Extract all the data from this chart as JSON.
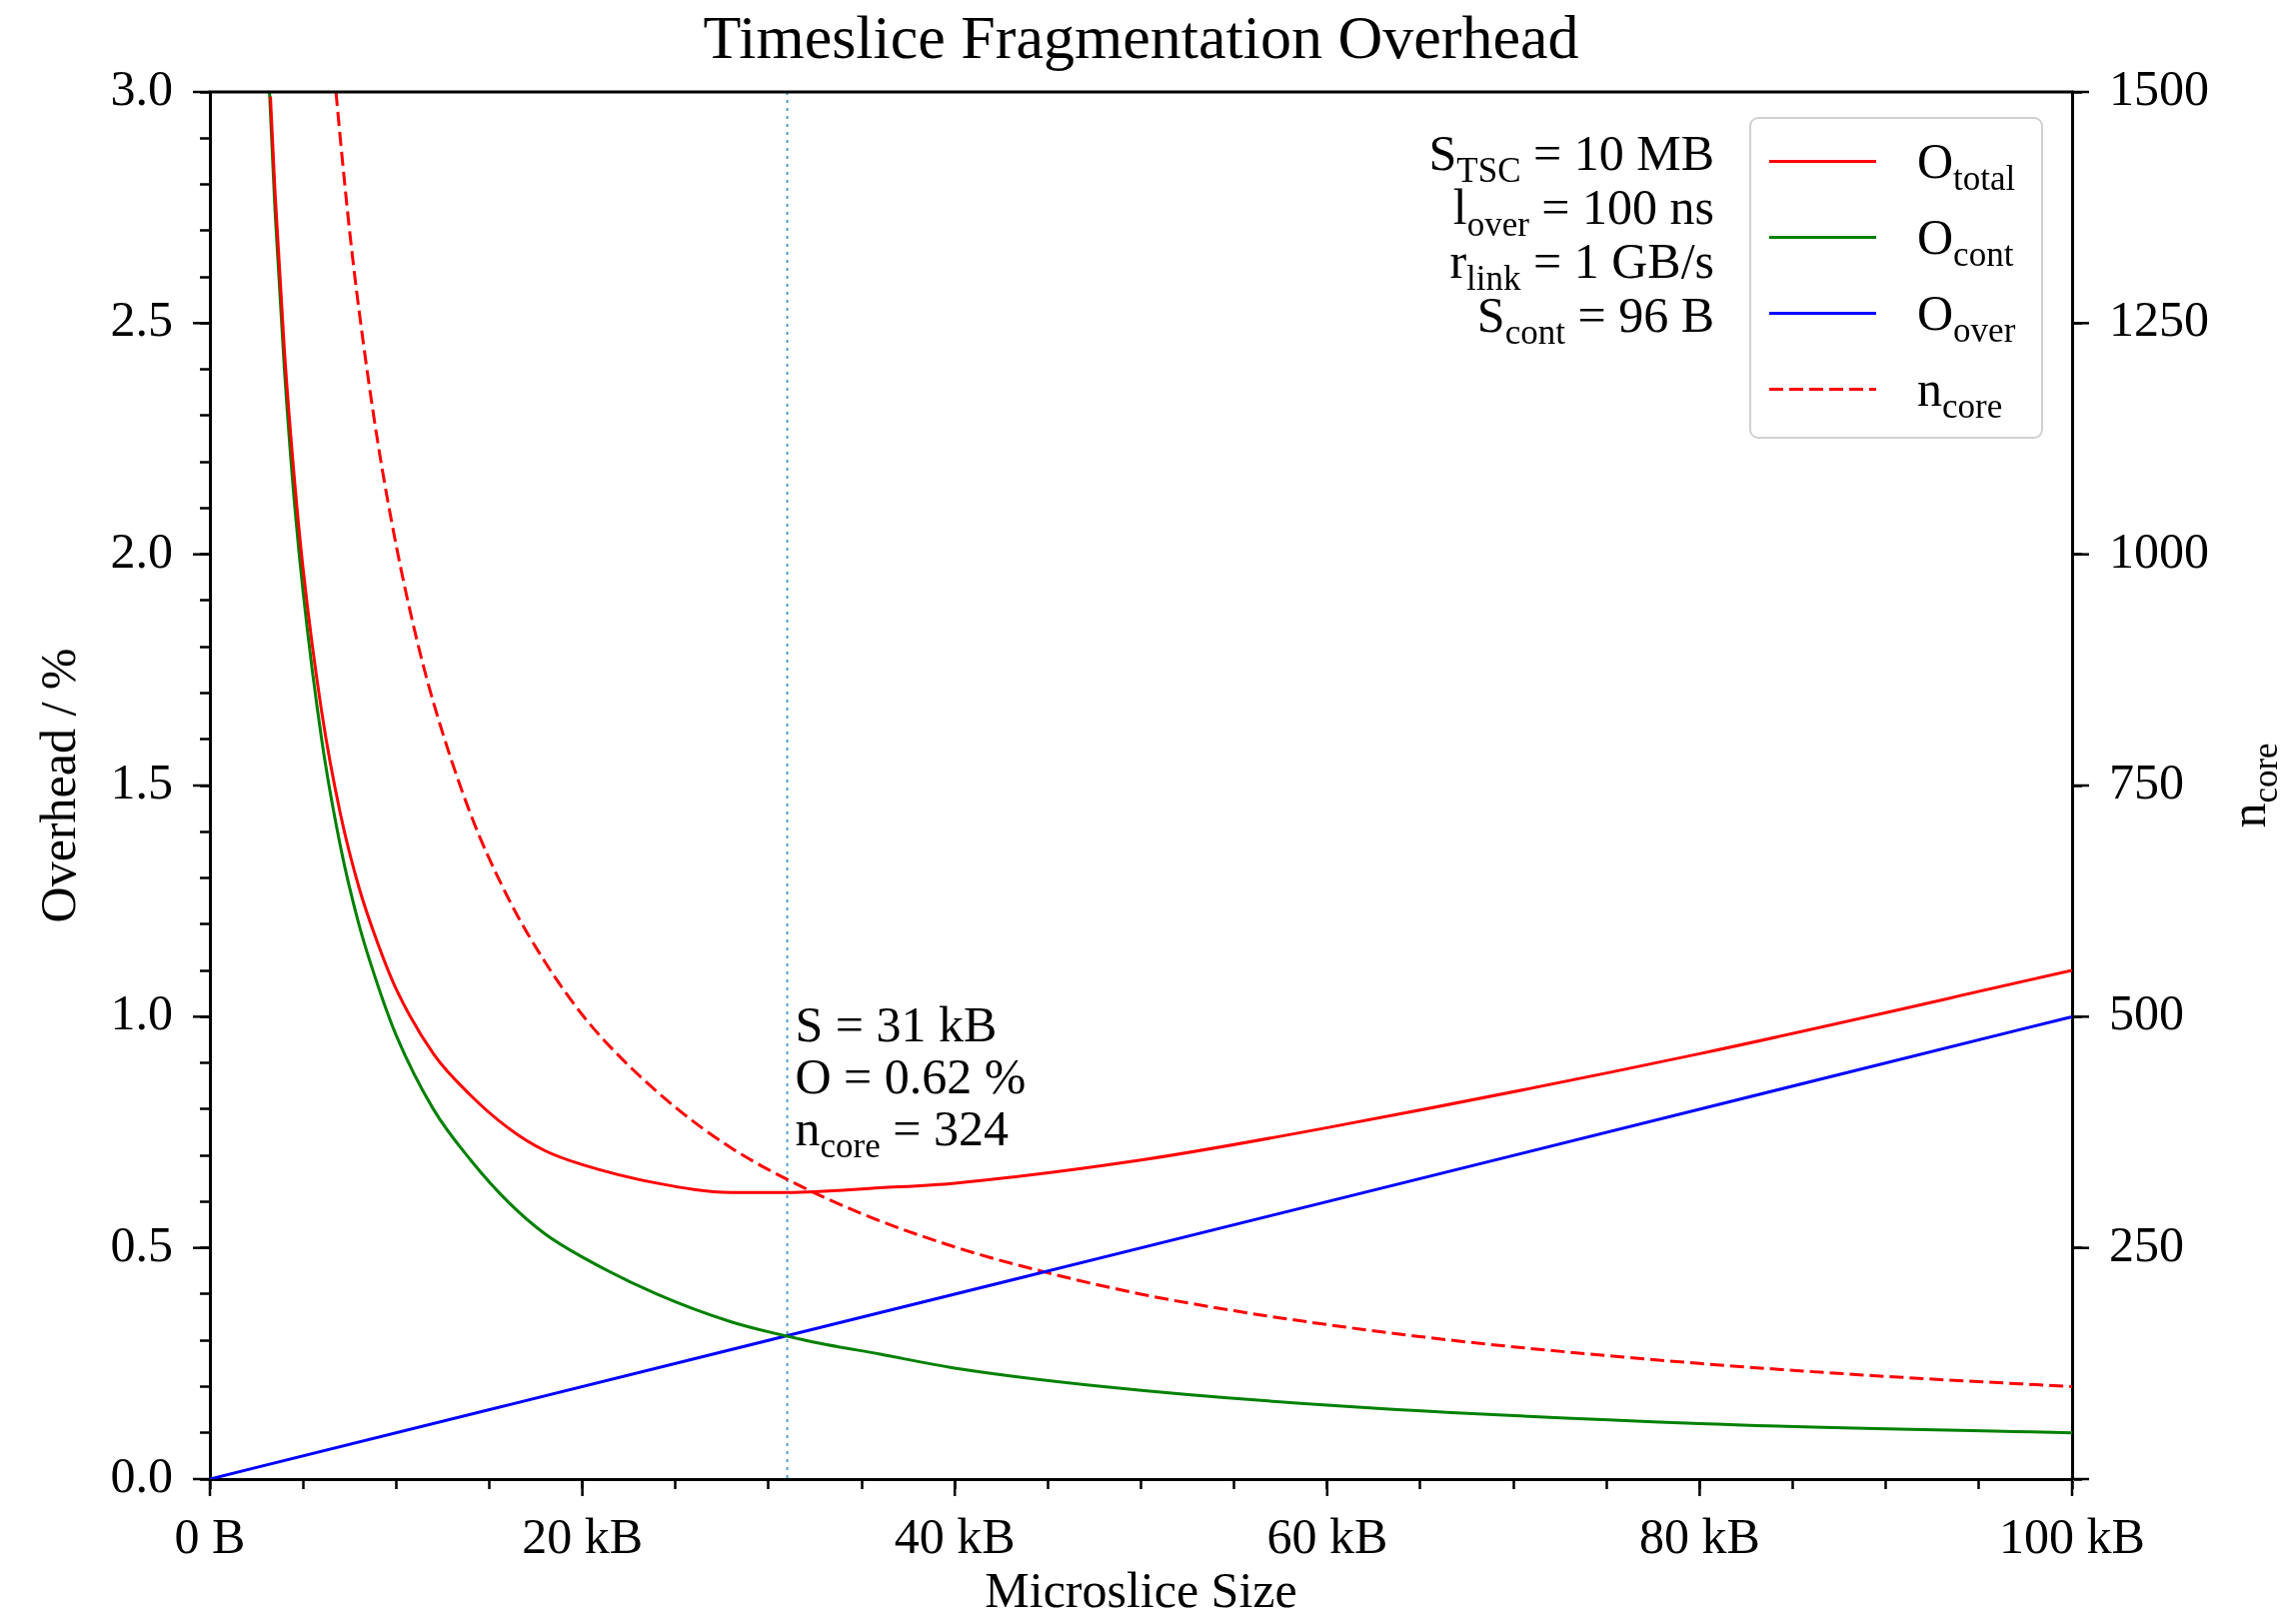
{
  "chart_data": {
    "type": "line",
    "title": "Timeslice Fragmentation Overhead",
    "xlabel": "Microslice Size",
    "ylabel": "Overhead / %",
    "y2label": "n$_{core}$",
    "annotations": [
      "S$_{TSC}$ = 10 MB",
      "l$_{over}$ = 100 ns",
      "r$_{link}$ = 1 GB/s",
      "S$_{cont}$ = 96 B",
      {
        "text": "S = 31 kB\nO = 0.62 %\nn$_{core}$ = 324",
        "x": 31,
        "y": 0.62
      }
    ],
    "series": [
      {
        "name": "O$_{total}$",
        "color": "#ff0000",
        "x": [
          3.25,
          3.5,
          4,
          4.5,
          5,
          6,
          7,
          8,
          9,
          10,
          12,
          14,
          16,
          18,
          20,
          24,
          28,
          31,
          36,
          40,
          50,
          60,
          80,
          100
        ],
        "values": [
          2.99,
          2.78,
          2.44,
          2.18,
          1.97,
          1.66,
          1.44,
          1.28,
          1.16,
          1.06,
          0.92,
          0.83,
          0.76,
          0.71,
          0.68,
          0.64,
          0.62,
          0.62,
          0.63,
          0.64,
          0.69,
          0.76,
          0.92,
          1.1
        ]
      },
      {
        "name": "O$_{cont}$",
        "color": "#008000",
        "x": [
          3.2,
          3.5,
          4,
          4.5,
          5,
          6,
          7,
          8,
          9,
          10,
          12,
          14,
          16,
          18,
          20,
          24,
          28,
          32,
          36,
          40,
          48,
          60,
          80,
          100
        ],
        "values": [
          3.0,
          2.74,
          2.4,
          2.13,
          1.92,
          1.6,
          1.37,
          1.2,
          1.07,
          0.96,
          0.8,
          0.69,
          0.6,
          0.53,
          0.48,
          0.4,
          0.34,
          0.3,
          0.27,
          0.24,
          0.2,
          0.16,
          0.12,
          0.1
        ]
      },
      {
        "name": "O$_{over}$",
        "color": "#0000ff",
        "x": [
          0,
          31,
          100
        ],
        "values": [
          0,
          0.31,
          1.0
        ]
      },
      {
        "name": "n$_{core}$",
        "color": "#ff0000",
        "axis": "y2",
        "line_style": "dashed",
        "x": [
          6.77,
          7,
          7.5,
          8,
          9,
          10,
          11,
          12,
          14,
          16,
          18,
          20,
          22,
          25,
          28,
          31,
          35,
          40,
          45,
          50,
          55,
          60,
          65,
          70,
          80,
          90,
          100
        ],
        "values": [
          1500,
          1450,
          1350,
          1265,
          1123,
          1010,
          917,
          840,
          719,
          629,
          559,
          502,
          457,
          402,
          358,
          324,
          287,
          251,
          223,
          200,
          182,
          167,
          154,
          143,
          125,
          111,
          100
        ]
      }
    ],
    "xlim": [
      0,
      100
    ],
    "xticks": [
      {
        "value": 0,
        "label": "0 B"
      },
      {
        "value": 5,
        "label": null
      },
      {
        "value": 10,
        "label": null
      },
      {
        "value": 15,
        "label": null
      },
      {
        "value": 20,
        "label": "20 kB"
      },
      {
        "value": 25,
        "label": null
      },
      {
        "value": 30,
        "label": null
      },
      {
        "value": 35,
        "label": null
      },
      {
        "value": 40,
        "label": "40 kB"
      },
      {
        "value": 45,
        "label": null
      },
      {
        "value": 50,
        "label": null
      },
      {
        "value": 55,
        "label": null
      },
      {
        "value": 60,
        "label": "60 kB"
      },
      {
        "value": 65,
        "label": null
      },
      {
        "value": 70,
        "label": null
      },
      {
        "value": 75,
        "label": null
      },
      {
        "value": 80,
        "label": "80 kB"
      },
      {
        "value": 85,
        "label": null
      },
      {
        "value": 90,
        "label": null
      },
      {
        "value": 95,
        "label": null
      },
      {
        "value": 100,
        "label": "100 kB"
      }
    ],
    "ylim": [
      0,
      3
    ],
    "yticks": [
      {
        "value": 0,
        "label": "0.0"
      },
      {
        "value": 0.1,
        "label": null
      },
      {
        "value": 0.2,
        "label": null
      },
      {
        "value": 0.3,
        "label": null
      },
      {
        "value": 0.4,
        "label": null
      },
      0.5,
      {
        "value": 0.6,
        "label": null
      },
      {
        "value": 0.7,
        "label": null
      },
      {
        "value": 0.8,
        "label": null
      },
      {
        "value": 0.9,
        "label": null
      },
      {
        "value": 1,
        "label": "1.0"
      },
      {
        "value": 1.1,
        "label": null
      },
      {
        "value": 1.2,
        "label": null
      },
      {
        "value": 1.3,
        "label": null
      },
      {
        "value": 1.4,
        "label": null
      },
      1.5,
      {
        "value": 1.6,
        "label": null
      },
      {
        "value": 1.7,
        "label": null
      },
      {
        "value": 1.8,
        "label": null
      },
      {
        "value": 1.9,
        "label": null
      },
      {
        "value": 2,
        "label": "2.0"
      },
      {
        "value": 2.1,
        "label": null
      },
      {
        "value": 2.2,
        "label": null
      },
      {
        "value": 2.3,
        "label": null
      },
      {
        "value": 2.4,
        "label": null
      },
      2.5,
      {
        "value": 2.6,
        "label": null
      },
      {
        "value": 2.7,
        "label": null
      },
      {
        "value": 2.8,
        "label": null
      },
      {
        "value": 2.9,
        "label": null
      },
      {
        "value": 3,
        "label": "3.0"
      }
    ],
    "y2lim": [
      0,
      1500
    ],
    "y2ticks": [
      {
        "value": 0,
        "label": null
      },
      250,
      500,
      750,
      1000,
      1250,
      1500
    ],
    "ref_lines": [
      {
        "axis": "x",
        "value": 31,
        "color": "#3d94d6",
        "line_style": "dotted"
      }
    ],
    "legend": "top right"
  }
}
